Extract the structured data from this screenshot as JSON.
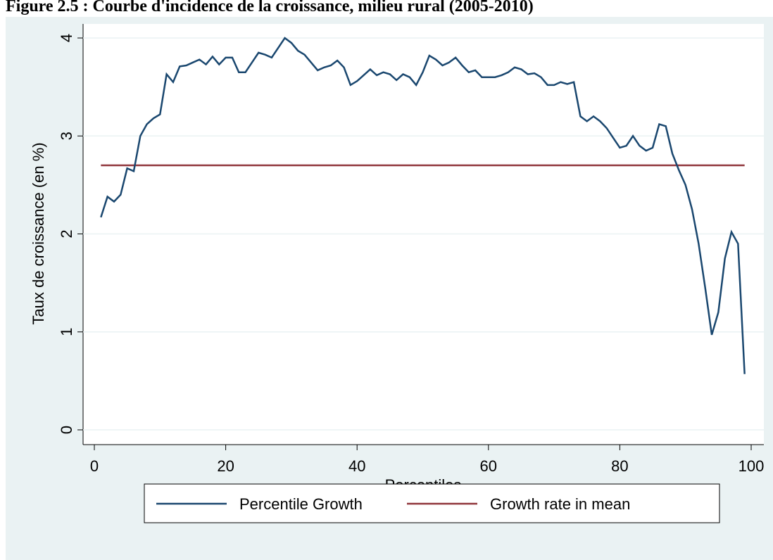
{
  "chart_data": {
    "type": "line",
    "title": "Figure 2.5 : Courbe d'incidence de la croissance, milieu rural (2005-2010)",
    "x_label": "Percentiles",
    "y_label": "Taux de croissance (en %)",
    "x": [
      1,
      2,
      3,
      4,
      5,
      6,
      7,
      8,
      9,
      10,
      11,
      12,
      13,
      14,
      15,
      16,
      17,
      18,
      19,
      20,
      21,
      22,
      23,
      24,
      25,
      26,
      27,
      28,
      29,
      30,
      31,
      32,
      33,
      34,
      35,
      36,
      37,
      38,
      39,
      40,
      41,
      42,
      43,
      44,
      45,
      46,
      47,
      48,
      49,
      50,
      51,
      52,
      53,
      54,
      55,
      56,
      57,
      58,
      59,
      60,
      61,
      62,
      63,
      64,
      65,
      66,
      67,
      68,
      69,
      70,
      71,
      72,
      73,
      74,
      75,
      76,
      77,
      78,
      79,
      80,
      81,
      82,
      83,
      84,
      85,
      86,
      87,
      88,
      89,
      90,
      91,
      92,
      93,
      94,
      95,
      96,
      97,
      98,
      99
    ],
    "series": [
      {
        "name": "Percentile Growth",
        "color": "#1a476f",
        "values": [
          2.17,
          2.38,
          2.33,
          2.4,
          2.67,
          2.64,
          3.0,
          3.12,
          3.18,
          3.22,
          3.63,
          3.55,
          3.71,
          3.72,
          3.75,
          3.78,
          3.73,
          3.81,
          3.73,
          3.8,
          3.8,
          3.65,
          3.65,
          3.75,
          3.85,
          3.83,
          3.8,
          3.9,
          4.0,
          3.95,
          3.87,
          3.83,
          3.75,
          3.67,
          3.7,
          3.72,
          3.77,
          3.7,
          3.52,
          3.56,
          3.62,
          3.68,
          3.62,
          3.65,
          3.63,
          3.57,
          3.63,
          3.6,
          3.52,
          3.65,
          3.82,
          3.78,
          3.72,
          3.75,
          3.8,
          3.72,
          3.65,
          3.67,
          3.6,
          3.6,
          3.6,
          3.62,
          3.65,
          3.7,
          3.68,
          3.63,
          3.64,
          3.6,
          3.52,
          3.52,
          3.55,
          3.53,
          3.55,
          3.2,
          3.15,
          3.2,
          3.15,
          3.08,
          2.98,
          2.88,
          2.9,
          3.0,
          2.9,
          2.85,
          2.88,
          3.12,
          3.1,
          2.82,
          2.65,
          2.5,
          2.25,
          1.9,
          1.45,
          0.97,
          1.2,
          1.75,
          2.02,
          1.9,
          0.57
        ]
      },
      {
        "name": "Growth rate in mean",
        "color": "#90353b",
        "values": [
          2.7,
          2.7,
          2.7,
          2.7,
          2.7,
          2.7,
          2.7,
          2.7,
          2.7,
          2.7,
          2.7,
          2.7,
          2.7,
          2.7,
          2.7,
          2.7,
          2.7,
          2.7,
          2.7,
          2.7,
          2.7,
          2.7,
          2.7,
          2.7,
          2.7,
          2.7,
          2.7,
          2.7,
          2.7,
          2.7,
          2.7,
          2.7,
          2.7,
          2.7,
          2.7,
          2.7,
          2.7,
          2.7,
          2.7,
          2.7,
          2.7,
          2.7,
          2.7,
          2.7,
          2.7,
          2.7,
          2.7,
          2.7,
          2.7,
          2.7,
          2.7,
          2.7,
          2.7,
          2.7,
          2.7,
          2.7,
          2.7,
          2.7,
          2.7,
          2.7,
          2.7,
          2.7,
          2.7,
          2.7,
          2.7,
          2.7,
          2.7,
          2.7,
          2.7,
          2.7,
          2.7,
          2.7,
          2.7,
          2.7,
          2.7,
          2.7,
          2.7,
          2.7,
          2.7,
          2.7,
          2.7,
          2.7,
          2.7,
          2.7,
          2.7,
          2.7,
          2.7,
          2.7,
          2.7,
          2.7,
          2.7,
          2.7,
          2.7,
          2.7,
          2.7,
          2.7,
          2.7,
          2.7,
          2.7
        ]
      }
    ],
    "xlim": [
      0,
      100
    ],
    "xticks": [
      0,
      20,
      40,
      60,
      80,
      100
    ],
    "ylim": [
      0,
      4
    ],
    "yticks": [
      0,
      1,
      2,
      3,
      4
    ],
    "grid": true,
    "legend": "bottom"
  }
}
